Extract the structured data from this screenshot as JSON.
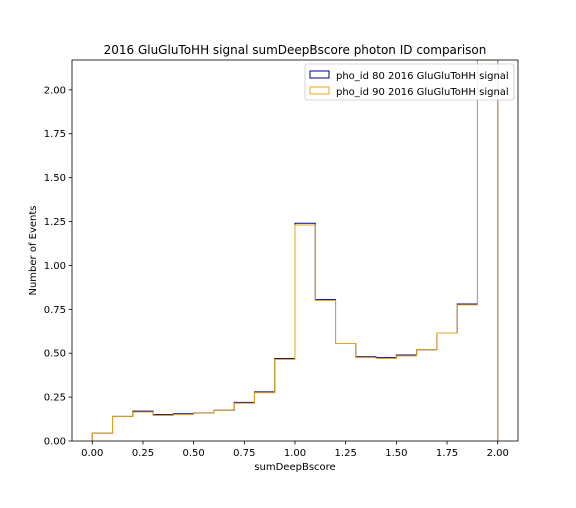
{
  "chart_data": {
    "type": "histogram",
    "title": "2016 GluGluToHH signal sumDeepBscore photon ID comparison",
    "xlabel": "sumDeepBscore",
    "ylabel": "Number of Events",
    "xlim": [
      -0.1,
      2.1
    ],
    "ylim": [
      0.0,
      2.17
    ],
    "grid": false,
    "legend_position": "top-right",
    "bin_edges": [
      0.0,
      0.1,
      0.2,
      0.3,
      0.4,
      0.5,
      0.6,
      0.7,
      0.8,
      0.9,
      1.0,
      1.1,
      1.2,
      1.3,
      1.4,
      1.5,
      1.6,
      1.7,
      1.8,
      1.9,
      2.0
    ],
    "xticks": [
      {
        "value": 0.0,
        "label": "0.00"
      },
      {
        "value": 0.25,
        "label": "0.25"
      },
      {
        "value": 0.5,
        "label": "0.50"
      },
      {
        "value": 0.75,
        "label": "0.75"
      },
      {
        "value": 1.0,
        "label": "1.00"
      },
      {
        "value": 1.25,
        "label": "1.25"
      },
      {
        "value": 1.5,
        "label": "1.50"
      },
      {
        "value": 1.75,
        "label": "1.75"
      },
      {
        "value": 2.0,
        "label": "2.00"
      }
    ],
    "yticks": [
      {
        "value": 0.0,
        "label": "0.00"
      },
      {
        "value": 0.25,
        "label": "0.25"
      },
      {
        "value": 0.5,
        "label": "0.50"
      },
      {
        "value": 0.75,
        "label": "0.75"
      },
      {
        "value": 1.0,
        "label": "1.00"
      },
      {
        "value": 1.25,
        "label": "1.25"
      },
      {
        "value": 1.5,
        "label": "1.50"
      },
      {
        "value": 1.75,
        "label": "1.75"
      },
      {
        "value": 2.0,
        "label": "2.00"
      }
    ],
    "series": [
      {
        "name": "pho_id 80 2016 GluGluToHH signal",
        "color": "#00008b",
        "values": [
          0.045,
          0.14,
          0.17,
          0.15,
          0.155,
          0.16,
          0.175,
          0.22,
          0.28,
          0.47,
          1.24,
          0.805,
          0.555,
          0.48,
          0.475,
          0.49,
          0.52,
          0.615,
          0.78,
          2.17
        ]
      },
      {
        "name": "pho_id 90 2016 GluGluToHH signal",
        "color": "#e6a817",
        "values": [
          0.045,
          0.14,
          0.165,
          0.145,
          0.15,
          0.16,
          0.175,
          0.215,
          0.275,
          0.465,
          1.23,
          0.8,
          0.555,
          0.475,
          0.47,
          0.485,
          0.52,
          0.615,
          0.775,
          2.17
        ]
      }
    ]
  }
}
